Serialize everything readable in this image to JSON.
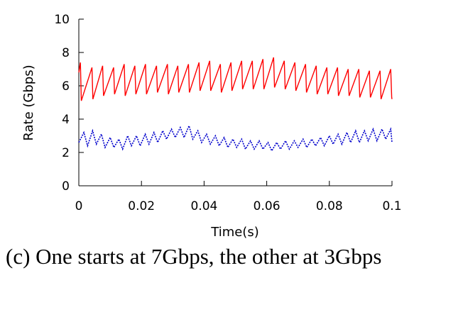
{
  "caption": "(c) One starts at 7Gbps, the other at 3Gbps",
  "chart_data": {
    "type": "line",
    "title": "",
    "xlabel": "Time(s)",
    "ylabel": "Rate (Gbps)",
    "xlim": [
      0,
      0.1
    ],
    "ylim": [
      0,
      10
    ],
    "xticks": [
      0,
      0.02,
      0.04,
      0.06,
      0.08,
      0.1
    ],
    "xtick_labels": [
      "0",
      "0.02",
      "0.04",
      "0.06",
      "0.08",
      "0.1"
    ],
    "yticks": [
      0,
      2,
      4,
      6,
      8,
      10
    ],
    "ytick_labels": [
      "0",
      "2",
      "4",
      "6",
      "8",
      "10"
    ],
    "grid": false,
    "legend": false,
    "series": [
      {
        "color": "#ff0000",
        "style": "solid",
        "x": [
          0,
          0.0005,
          0.0008,
          0.0042,
          0.0045,
          0.0076,
          0.0079,
          0.0111,
          0.0114,
          0.0145,
          0.0148,
          0.0179,
          0.0182,
          0.0213,
          0.0216,
          0.0248,
          0.0251,
          0.0283,
          0.0286,
          0.0316,
          0.0319,
          0.035,
          0.0353,
          0.0384,
          0.0387,
          0.0418,
          0.0421,
          0.0452,
          0.0455,
          0.0486,
          0.0489,
          0.052,
          0.0523,
          0.0554,
          0.0557,
          0.0588,
          0.0591,
          0.0622,
          0.0625,
          0.0656,
          0.0659,
          0.069,
          0.0693,
          0.0724,
          0.0727,
          0.0758,
          0.0761,
          0.0792,
          0.0795,
          0.0826,
          0.0829,
          0.086,
          0.0863,
          0.0894,
          0.0897,
          0.0928,
          0.0931,
          0.0962,
          0.0965,
          0.0996,
          0.0999,
          0.1
        ],
        "y": [
          6.8,
          7.4,
          5.1,
          7.1,
          5.2,
          7.2,
          5.4,
          7.1,
          5.5,
          7.3,
          5.4,
          7.2,
          5.5,
          7.3,
          5.5,
          7.2,
          5.6,
          7.3,
          5.5,
          7.2,
          5.6,
          7.3,
          5.6,
          7.4,
          5.7,
          7.5,
          5.7,
          7.3,
          5.6,
          7.4,
          5.7,
          7.5,
          5.8,
          7.5,
          5.8,
          7.6,
          5.8,
          7.7,
          5.9,
          7.5,
          5.8,
          7.4,
          5.7,
          7.3,
          5.6,
          7.2,
          5.5,
          7.1,
          5.5,
          7.1,
          5.4,
          7.0,
          5.4,
          7.0,
          5.3,
          6.9,
          5.3,
          6.9,
          5.2,
          7.0,
          5.3,
          5.2
        ]
      },
      {
        "color": "#0000cc",
        "style": "dotted",
        "x": [
          0,
          0.0016,
          0.0028,
          0.0044,
          0.0056,
          0.0072,
          0.0084,
          0.01,
          0.0112,
          0.0128,
          0.014,
          0.0156,
          0.0168,
          0.0184,
          0.0196,
          0.0212,
          0.0224,
          0.024,
          0.0252,
          0.0268,
          0.028,
          0.0296,
          0.0308,
          0.0324,
          0.0336,
          0.0352,
          0.0364,
          0.038,
          0.0392,
          0.0408,
          0.042,
          0.0436,
          0.0448,
          0.0464,
          0.0476,
          0.0492,
          0.0504,
          0.052,
          0.0532,
          0.0548,
          0.056,
          0.0576,
          0.0588,
          0.0604,
          0.0616,
          0.0632,
          0.0644,
          0.066,
          0.0672,
          0.0688,
          0.07,
          0.0716,
          0.0728,
          0.0744,
          0.0756,
          0.0772,
          0.0784,
          0.08,
          0.0812,
          0.0828,
          0.084,
          0.0856,
          0.0868,
          0.0884,
          0.0896,
          0.0912,
          0.0924,
          0.094,
          0.0952,
          0.0968,
          0.098,
          0.0996,
          0.1
        ],
        "y": [
          2.6,
          3.2,
          2.4,
          3.3,
          2.5,
          3.1,
          2.3,
          2.9,
          2.3,
          2.8,
          2.2,
          3.0,
          2.4,
          3.0,
          2.4,
          3.1,
          2.5,
          3.2,
          2.6,
          3.3,
          2.8,
          3.4,
          2.9,
          3.5,
          2.9,
          3.6,
          2.8,
          3.3,
          2.6,
          3.1,
          2.5,
          3.0,
          2.4,
          2.9,
          2.3,
          2.8,
          2.3,
          2.8,
          2.2,
          2.7,
          2.2,
          2.7,
          2.2,
          2.6,
          2.1,
          2.6,
          2.2,
          2.7,
          2.2,
          2.7,
          2.3,
          2.8,
          2.3,
          2.8,
          2.4,
          2.9,
          2.4,
          3.0,
          2.5,
          3.1,
          2.5,
          3.2,
          2.6,
          3.3,
          2.6,
          3.3,
          2.7,
          3.4,
          2.7,
          3.4,
          2.8,
          3.4,
          2.6
        ]
      }
    ]
  }
}
